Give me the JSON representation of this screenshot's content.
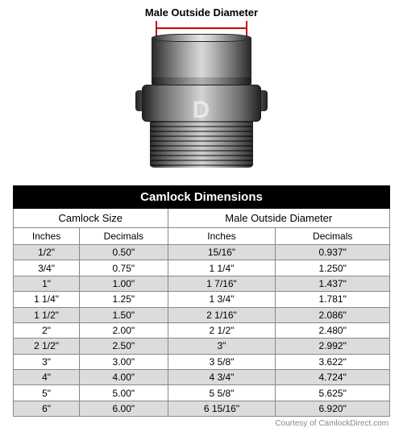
{
  "diagram": {
    "label": "Male Outside Diameter",
    "watermark": "D",
    "bracket_color": "#cc0000"
  },
  "table": {
    "title": "Camlock Dimensions",
    "groups": {
      "size": "Camlock Size",
      "mod": "Male Outside Diameter"
    },
    "subheads": {
      "col1": "Inches",
      "col2": "Decimals",
      "col3": "Inches",
      "col4": "Decimals"
    },
    "rows": [
      {
        "c1": "1/2\"",
        "c2": "0.50\"",
        "c3": "15/16\"",
        "c4": "0.937\""
      },
      {
        "c1": "3/4\"",
        "c2": "0.75\"",
        "c3": "1 1/4\"",
        "c4": "1.250\""
      },
      {
        "c1": "1\"",
        "c2": "1.00\"",
        "c3": "1 7/16\"",
        "c4": "1.437\""
      },
      {
        "c1": "1 1/4\"",
        "c2": "1.25\"",
        "c3": "1 3/4\"",
        "c4": "1.781\""
      },
      {
        "c1": "1 1/2\"",
        "c2": "1.50\"",
        "c3": "2 1/16\"",
        "c4": "2.086\""
      },
      {
        "c1": "2\"",
        "c2": "2.00\"",
        "c3": "2 1/2\"",
        "c4": "2.480\""
      },
      {
        "c1": "2 1/2\"",
        "c2": "2.50\"",
        "c3": "3\"",
        "c4": "2.992\""
      },
      {
        "c1": "3\"",
        "c2": "3.00\"",
        "c3": "3 5/8\"",
        "c4": "3.622\""
      },
      {
        "c1": "4\"",
        "c2": "4.00\"",
        "c3": "4 3/4\"",
        "c4": "4.724\""
      },
      {
        "c1": "5\"",
        "c2": "5.00\"",
        "c3": "5 5/8\"",
        "c4": "5.625\""
      },
      {
        "c1": "6\"",
        "c2": "6.00\"",
        "c3": "6 15/16\"",
        "c4": "6.920\""
      }
    ],
    "colors": {
      "title_bg": "#000000",
      "title_fg": "#ffffff",
      "border": "#888888",
      "row_odd_bg": "#dcdcdc",
      "row_even_bg": "#ffffff"
    }
  },
  "courtesy": "Courtesy of CamlockDirect.com"
}
